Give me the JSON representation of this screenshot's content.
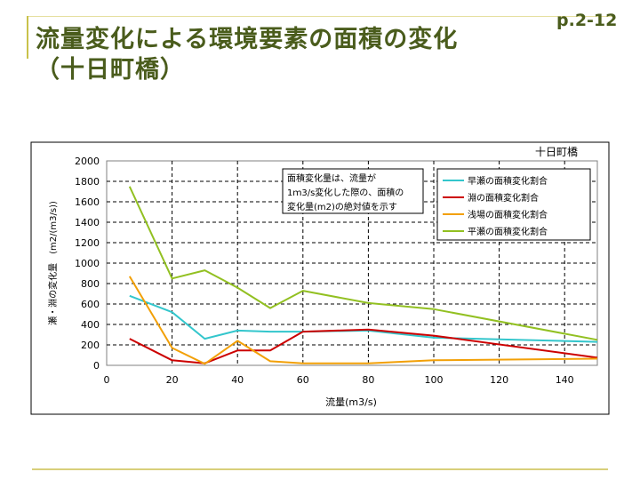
{
  "page": {
    "title_line1": "流量変化による環境要素の面積の変化",
    "title_line2": "（十日町橋）",
    "page_number": "p.2-12"
  },
  "chart_data": {
    "type": "line",
    "title": "十日町橋",
    "xlabel": "流量(m3/s)",
    "ylabel": "瀬・淵の変化量　(m2/(m3/s))",
    "xlim": [
      0,
      150
    ],
    "ylim": [
      0,
      2000
    ],
    "xticks": [
      "0",
      "20",
      "40",
      "60",
      "80",
      "100",
      "120",
      "140"
    ],
    "yticks": [
      "0",
      "200",
      "400",
      "600",
      "800",
      "1000",
      "1200",
      "1400",
      "1600",
      "1800",
      "2000"
    ],
    "grid": true,
    "legend_position": "top-right",
    "annotation": [
      "面積変化量は、流量が",
      "1ｍ3/s変化した際の、面積の",
      "変化量(m2)の絶対値を示す"
    ],
    "series": [
      {
        "name": "早瀬の面積変化割合",
        "color": "#33c6cc",
        "x": [
          7,
          20,
          30,
          40,
          50,
          60,
          80,
          100,
          150
        ],
        "y": [
          680,
          520,
          260,
          340,
          330,
          330,
          340,
          270,
          230
        ]
      },
      {
        "name": "淵の面積変化割合",
        "color": "#cc0000",
        "x": [
          7,
          20,
          30,
          40,
          50,
          60,
          80,
          100,
          150
        ],
        "y": [
          260,
          50,
          20,
          145,
          145,
          330,
          350,
          290,
          75
        ]
      },
      {
        "name": "浅場の面積変化割合",
        "color": "#f2a007",
        "x": [
          7,
          20,
          30,
          40,
          50,
          60,
          80,
          100,
          150
        ],
        "y": [
          870,
          170,
          15,
          240,
          40,
          20,
          20,
          50,
          65
        ]
      },
      {
        "name": "平瀬の面積変化割合",
        "color": "#92c021",
        "x": [
          7,
          20,
          30,
          40,
          50,
          60,
          80,
          100,
          150
        ],
        "y": [
          1750,
          850,
          930,
          760,
          560,
          730,
          610,
          550,
          250
        ]
      }
    ]
  }
}
